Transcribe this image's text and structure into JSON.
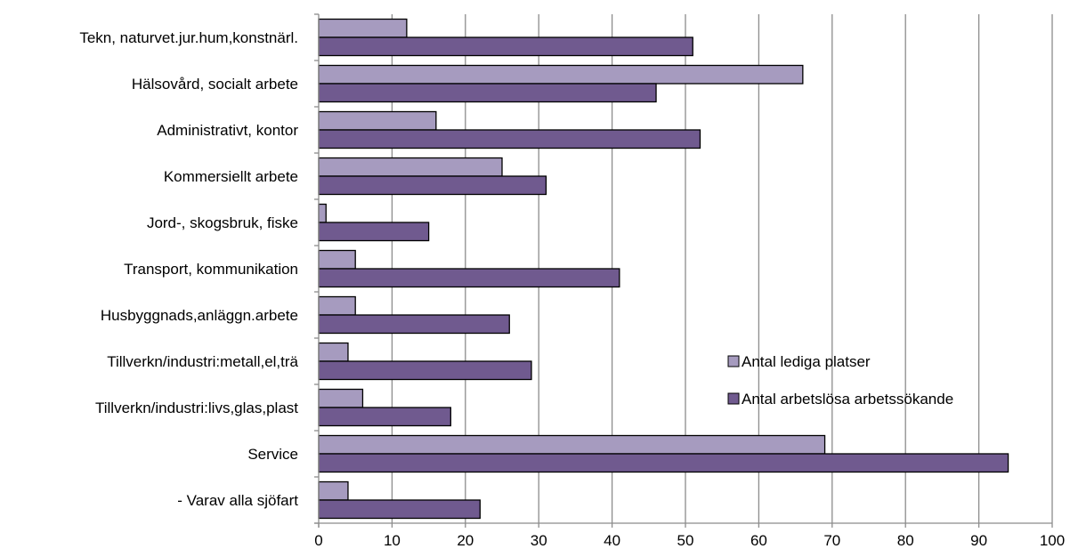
{
  "chart_data": {
    "type": "bar",
    "orientation": "horizontal",
    "categories": [
      "Tekn, naturvet.jur.hum,konstnärl.",
      "Hälsovård, socialt arbete",
      "Administrativt, kontor",
      "Kommersiellt arbete",
      "Jord-, skogsbruk, fiske",
      "Transport, kommunikation",
      "Husbyggnads,anläggn.arbete",
      "Tillverkn/industri:metall,el,trä",
      "Tillverkn/industri:livs,glas,plast",
      "Service",
      "- Varav alla sjöfart"
    ],
    "series": [
      {
        "name": "Antal lediga platser",
        "color": "#a69bbf",
        "values": [
          12,
          66,
          16,
          25,
          1,
          5,
          5,
          4,
          6,
          69,
          4
        ]
      },
      {
        "name": "Antal arbetslösa arbetssökande",
        "color": "#705a8f",
        "values": [
          51,
          46,
          52,
          31,
          15,
          41,
          26,
          29,
          18,
          94,
          22
        ]
      }
    ],
    "xlim": [
      0,
      100
    ],
    "xticks": [
      0,
      10,
      20,
      30,
      40,
      50,
      60,
      70,
      80,
      90,
      100
    ],
    "grid": "vertical",
    "legend": "right"
  }
}
